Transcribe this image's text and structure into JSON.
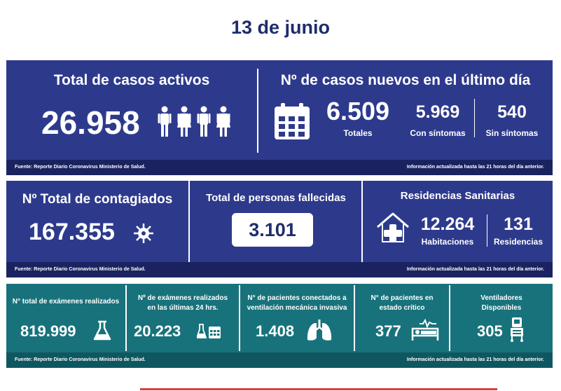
{
  "date": "13 de junio",
  "source": "Fuente: Reporte Diario Coronavirus Ministerio de Salud.",
  "updated": "Información actualizada hasta las 21 horas  del día anterior.",
  "active": {
    "title": "Total de casos activos",
    "value": "26.958",
    "icon": "people-icon"
  },
  "new_cases": {
    "title": "Nº de casos nuevos en el último día",
    "total_value": "6.509",
    "total_label": "Totales",
    "symptomatic_value": "5.969",
    "symptomatic_label": "Con síntomas",
    "asymptomatic_value": "540",
    "asymptomatic_label": "Sin síntomas",
    "icon": "calendar-icon"
  },
  "infected": {
    "title": "Nº Total de contagiados",
    "value": "167.355",
    "icon": "virus-icon"
  },
  "deceased": {
    "title": "Total de personas fallecidas",
    "value": "3.101"
  },
  "residences": {
    "title": "Residencias Sanitarias",
    "rooms_value": "12.264",
    "rooms_label": "Habitaciones",
    "res_value": "131",
    "res_label": "Residencias",
    "icon": "health-house-icon"
  },
  "exams_total": {
    "title": "N° total de exámenes realizados",
    "value": "819.999",
    "icon": "flask-icon"
  },
  "exams_24h": {
    "title_1": "Nº de exámenes realizados",
    "title_2": "en las últimas 24 hrs.",
    "value": "20.223",
    "icon": "flask-calendar-icon"
  },
  "ventilated": {
    "title_1": "N° de pacientes conectados a",
    "title_2": "ventilación mecánica invasiva",
    "value": "1.408",
    "icon": "lungs-icon"
  },
  "critical": {
    "title_1": "N° de pacientes  en",
    "title_2": "estado crítico",
    "value": "377",
    "icon": "hospital-bed-icon"
  },
  "ventilators": {
    "title_1": "Ventiladores",
    "title_2": "Disponibles",
    "value": "305",
    "icon": "ventilator-icon"
  },
  "colors": {
    "navy": "#2d3a8c",
    "teal": "#18727b",
    "date": "#1f2d6b"
  }
}
